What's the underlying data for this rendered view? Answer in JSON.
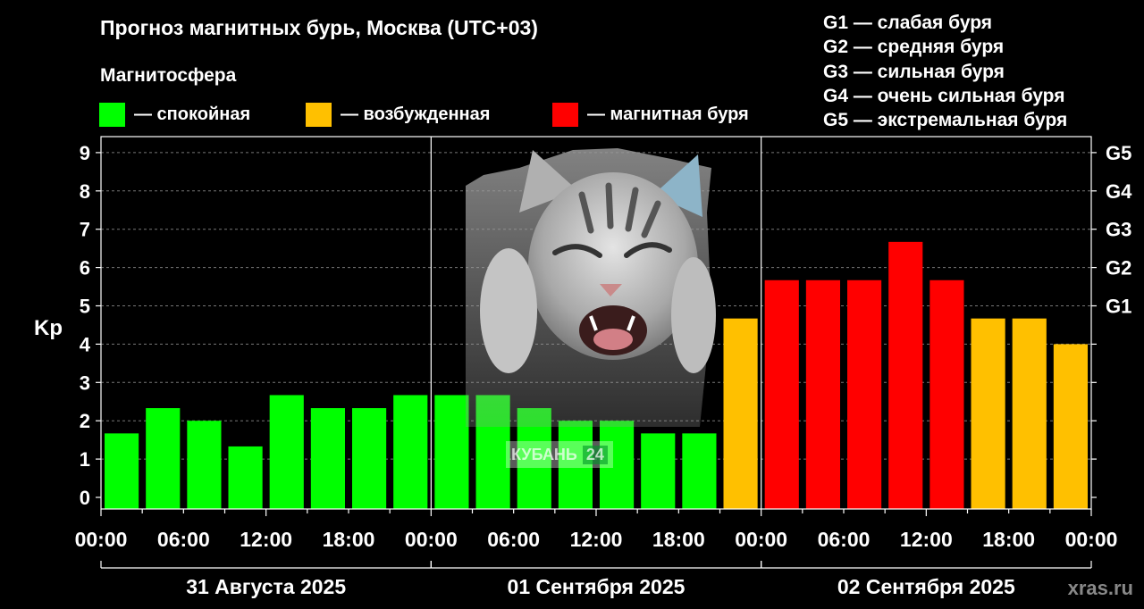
{
  "title": "Прогноз магнитных бурь, Москва (UTC+03)",
  "legend": {
    "heading": "Магнитосфера",
    "items": [
      {
        "label": "— спокойная",
        "color": "#00ff00"
      },
      {
        "label": "— возбужденная",
        "color": "#ffc000"
      },
      {
        "label": "— магнитная буря",
        "color": "#ff0000"
      }
    ]
  },
  "storm_levels": [
    "G1 — слабая буря",
    "G2 — средняя буря",
    "G3 — сильная буря",
    "G4 — очень сильная буря",
    "G5 — экстремальная буря"
  ],
  "watermark": "xras.ru",
  "overlay": {
    "caption": "КУБАНЬ",
    "number": "24"
  },
  "chart_data": {
    "type": "bar",
    "ylabel": "Kp",
    "ylim": [
      0,
      9
    ],
    "y_ticks": [
      "0",
      "1",
      "2",
      "3",
      "4",
      "5",
      "6",
      "7",
      "8",
      "9"
    ],
    "right_axis": [
      {
        "value": 5,
        "label": "G1"
      },
      {
        "value": 6,
        "label": "G2"
      },
      {
        "value": 7,
        "label": "G3"
      },
      {
        "value": 8,
        "label": "G4"
      },
      {
        "value": 9,
        "label": "G5"
      }
    ],
    "x_tick_labels": [
      "00:00",
      "06:00",
      "12:00",
      "18:00",
      "00:00",
      "06:00",
      "12:00",
      "18:00",
      "00:00",
      "06:00",
      "12:00",
      "18:00",
      "00:00"
    ],
    "days": [
      "31 Августа 2025",
      "01 Сентября 2025",
      "02 Сентября 2025"
    ],
    "colors": {
      "calm": "#00ff00",
      "excited": "#ffc000",
      "storm": "#ff0000"
    },
    "values": [
      1.67,
      2.33,
      2.0,
      1.33,
      2.67,
      2.33,
      2.33,
      2.67,
      2.67,
      2.67,
      2.33,
      2.0,
      2.0,
      1.67,
      1.67,
      4.67,
      5.67,
      5.67,
      5.67,
      6.67,
      5.67,
      4.67,
      4.67,
      4.0
    ],
    "grid": true
  }
}
